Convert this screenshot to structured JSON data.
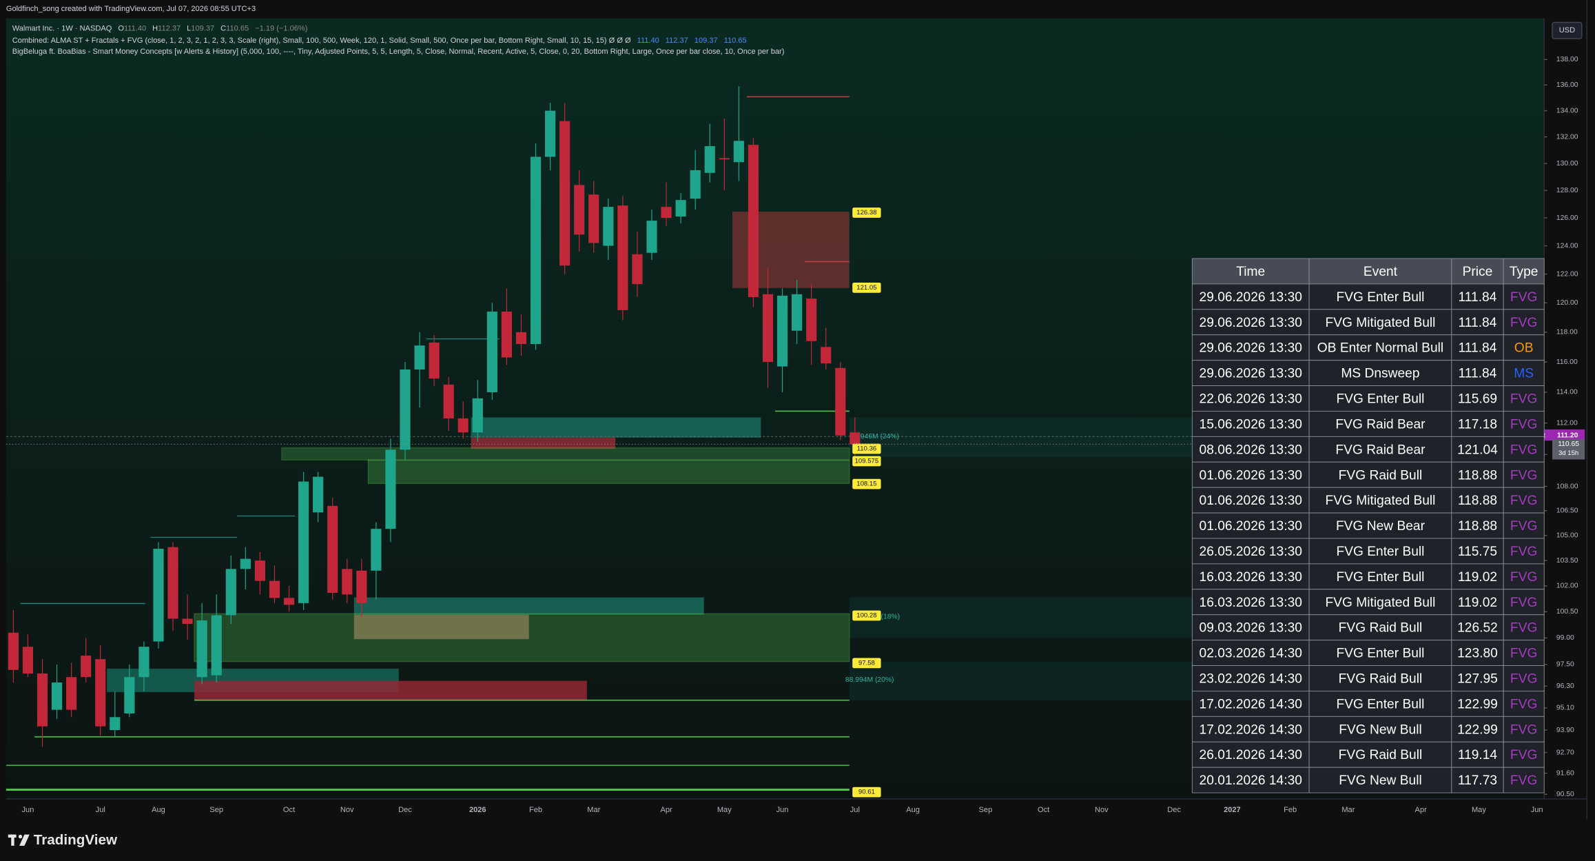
{
  "header": {
    "credit": "Goldfinch_song created with TradingView.com, Jul 07, 2026 08:55 UTC+3",
    "symbol": "Walmart Inc. · 1W · NASDAQ",
    "ohlc": [
      {
        "key": "O",
        "value": "111.40"
      },
      {
        "key": "H",
        "value": "112.37"
      },
      {
        "key": "L",
        "value": "109.37"
      },
      {
        "key": "C",
        "value": "110.65"
      }
    ],
    "change": "−1.19 (−1.06%)",
    "indicator1": {
      "text": "Combined: ALMA ST + Fractals + FVG (close, 1, 2, 3, 2, 1, 2, 3, 3, Scale (right), Small, 100, 500, Week, 120, 1, Solid, Small, 500, Once per bar, Bottom Right, Small, 10, 15, 15)  Ø  Ø  Ø",
      "values": [
        "111.40",
        "112.37",
        "109.37",
        "110.65"
      ]
    },
    "indicator2": "BigBeluga ft. BoaBias - Smart Money Concepts [w Alerts & History] (5,000, 100, ----, Tiny, Adjusted Points, 5, 5, Length, 5, Close, Normal, Recent, Active, 5, Close, 0, 20, Bottom Right, Large, Once per bar close, 10, Once per bar)",
    "currency": "USD"
  },
  "chart_data": {
    "type": "candlestick",
    "log_scale": true,
    "grid": false,
    "up_color": "#1fa58c",
    "down_color": "#c2283a",
    "categories": [
      null,
      "Jun",
      null,
      null,
      null,
      null,
      "Jul",
      null,
      null,
      null,
      "Aug",
      null,
      null,
      null,
      "Sep",
      null,
      null,
      null,
      null,
      "Oct",
      null,
      null,
      null,
      "Nov",
      null,
      null,
      null,
      "Dec",
      null,
      null,
      null,
      null,
      "2026",
      null,
      null,
      null,
      "Feb",
      null,
      null,
      null,
      "Mar",
      null,
      null,
      null,
      null,
      "Apr",
      null,
      null,
      null,
      "May",
      null,
      null,
      null,
      "Jun",
      null,
      null,
      null,
      null,
      "Jul",
      null,
      null,
      null,
      "Aug",
      null,
      null,
      null,
      null,
      "Sep",
      null,
      null,
      null,
      "Oct",
      null,
      null,
      null,
      "Nov",
      null,
      null,
      null,
      null,
      "Dec",
      null,
      null,
      null,
      "2027",
      null,
      null,
      null,
      "Feb",
      null,
      null,
      null,
      "Mar",
      null,
      null,
      null,
      null,
      "Apr",
      null,
      null,
      null,
      "May",
      null,
      null,
      null,
      "Jun"
    ],
    "open": [
      99.3,
      98.5,
      97.0,
      95.0,
      96.8,
      98.0,
      97.8,
      93.9,
      94.8,
      96.8,
      98.8,
      104.3,
      100.1,
      96.8,
      96.9,
      100.3,
      103.0,
      103.5,
      102.3,
      101.3,
      101.0,
      106.4,
      106.8,
      103.0,
      102.9,
      102.9,
      105.4,
      110.3,
      115.5,
      117.3,
      114.5,
      112.3,
      111.4,
      114.0,
      119.4,
      118.0,
      117.2,
      130.5,
      133.2,
      128.4,
      127.7,
      124.0,
      126.9,
      123.4,
      123.5,
      126.8,
      126.1,
      127.4,
      129.3,
      130.4,
      130.1,
      131.4,
      120.6,
      115.7,
      118.1,
      120.3,
      117.0,
      115.6,
      111.4,
      null,
      null,
      null,
      null,
      null,
      null,
      null,
      null,
      null,
      null,
      null,
      null,
      null,
      null,
      null,
      null,
      null,
      null,
      null,
      null,
      null,
      null,
      null,
      null,
      null,
      null,
      null,
      null,
      null,
      null,
      null,
      null,
      null,
      null,
      null,
      null,
      null,
      null,
      null,
      null,
      null,
      null,
      null,
      null,
      null,
      null,
      null
    ],
    "high": [
      100.6,
      99.2,
      97.8,
      97.5,
      97.6,
      99.0,
      98.6,
      96.0,
      97.5,
      98.8,
      104.6,
      104.6,
      101.5,
      101.0,
      101.5,
      103.8,
      104.3,
      104.0,
      103.2,
      102.0,
      108.9,
      108.9,
      107.3,
      103.6,
      103.6,
      105.8,
      111.0,
      116.0,
      118.0,
      117.8,
      115.0,
      113.4,
      114.8,
      120.0,
      121.0,
      119.2,
      131.5,
      134.6,
      134.6,
      129.5,
      128.7,
      127.4,
      127.6,
      125.0,
      126.6,
      128.6,
      127.8,
      131.0,
      133.0,
      133.4,
      135.9,
      131.9,
      122.4,
      121.0,
      121.6,
      121.3,
      118.3,
      116.0,
      112.37,
      null,
      null,
      null,
      null,
      null,
      null,
      null,
      null,
      null,
      null,
      null,
      null,
      null,
      null,
      null,
      null,
      null,
      null,
      null,
      null,
      null,
      null,
      null,
      null,
      null,
      null,
      null,
      null,
      null,
      null,
      null,
      null,
      null,
      null,
      null,
      null,
      null,
      null,
      null,
      null,
      null,
      null,
      null,
      null,
      null,
      null,
      null
    ],
    "low": [
      96.5,
      96.8,
      93.0,
      94.5,
      94.6,
      96.5,
      93.6,
      93.5,
      94.6,
      96.0,
      98.4,
      99.4,
      98.9,
      96.4,
      96.5,
      99.8,
      101.8,
      101.5,
      101.0,
      100.5,
      100.6,
      105.8,
      101.2,
      101.0,
      100.2,
      101.2,
      104.6,
      109.6,
      113.0,
      114.4,
      111.5,
      111.0,
      110.8,
      113.5,
      115.8,
      116.4,
      116.8,
      129.5,
      122.0,
      123.6,
      123.5,
      123.0,
      118.8,
      120.4,
      123.0,
      125.4,
      125.6,
      126.6,
      128.6,
      128.0,
      128.7,
      119.7,
      114.3,
      114.0,
      117.2,
      115.8,
      115.5,
      110.9,
      109.37,
      null,
      null,
      null,
      null,
      null,
      null,
      null,
      null,
      null,
      null,
      null,
      null,
      null,
      null,
      null,
      null,
      null,
      null,
      null,
      null,
      null,
      null,
      null,
      null,
      null,
      null,
      null,
      null,
      null,
      null,
      null,
      null,
      null,
      null,
      null,
      null,
      null,
      null,
      null,
      null,
      null,
      null,
      null,
      null,
      null,
      null,
      null
    ],
    "close": [
      97.2,
      97.0,
      94.1,
      96.5,
      95.0,
      96.8,
      94.1,
      94.6,
      96.8,
      98.5,
      104.2,
      100.1,
      99.8,
      100.0,
      100.3,
      103.0,
      103.6,
      102.3,
      101.3,
      100.9,
      108.3,
      108.6,
      101.6,
      101.5,
      101.0,
      105.4,
      110.3,
      115.5,
      117.1,
      114.9,
      112.3,
      111.4,
      113.6,
      119.4,
      116.3,
      117.2,
      130.5,
      134.0,
      122.6,
      124.8,
      124.2,
      126.8,
      119.5,
      121.3,
      125.8,
      126.0,
      127.3,
      129.5,
      131.3,
      130.3,
      131.7,
      120.4,
      116.0,
      120.5,
      120.6,
      117.4,
      115.9,
      111.2,
      110.65,
      null,
      null,
      null,
      null,
      null,
      null,
      null,
      null,
      null,
      null,
      null,
      null,
      null,
      null,
      null,
      null,
      null,
      null,
      null,
      null,
      null,
      null,
      null,
      null,
      null,
      null,
      null,
      null,
      null,
      null,
      null,
      null,
      null,
      null,
      null,
      null,
      null,
      null,
      null,
      null,
      null,
      null,
      null,
      null,
      null,
      null,
      null
    ],
    "ylim": [
      90.26,
      141.3
    ],
    "yticks": [
      {
        "value": 138,
        "label": "138.00"
      },
      {
        "value": 136,
        "label": "136.00"
      },
      {
        "value": 134,
        "label": "134.00"
      },
      {
        "value": 132,
        "label": "132.00"
      },
      {
        "value": 130,
        "label": "130.00"
      },
      {
        "value": 128,
        "label": "128.00"
      },
      {
        "value": 126,
        "label": "126.00"
      },
      {
        "value": 124,
        "label": "124.00"
      },
      {
        "value": 122,
        "label": "122.00"
      },
      {
        "value": 120,
        "label": "120.00"
      },
      {
        "value": 118,
        "label": "118.00"
      },
      {
        "value": 116,
        "label": "116.00"
      },
      {
        "value": 114,
        "label": "114.00"
      },
      {
        "value": 112,
        "label": "112.00"
      },
      {
        "value": 110,
        "label": "110.00"
      },
      {
        "value": 108,
        "label": "108.00"
      },
      {
        "value": 106.5,
        "label": "106.50"
      },
      {
        "value": 105,
        "label": "105.00"
      },
      {
        "value": 103.5,
        "label": "103.50"
      },
      {
        "value": 102,
        "label": "102.00"
      },
      {
        "value": 100.5,
        "label": "100.50"
      },
      {
        "value": 99,
        "label": "99.00"
      },
      {
        "value": 97.5,
        "label": "97.50"
      },
      {
        "value": 96.3,
        "label": "96.30"
      },
      {
        "value": 95.1,
        "label": "95.10"
      },
      {
        "value": 93.9,
        "label": "93.90"
      },
      {
        "value": 92.7,
        "label": "92.70"
      },
      {
        "value": 91.6,
        "label": "91.60"
      },
      {
        "value": 90.5,
        "label": "90.50"
      }
    ],
    "price_labels": [
      126.38,
      121.05,
      110.36,
      109.575,
      108.15,
      100.28,
      97.58,
      90.61
    ],
    "last_price": {
      "value": 110.65,
      "countdown": "3d 15h"
    },
    "overnight": {
      "name": "Overnight",
      "value": 111.2,
      "label": "111.20"
    },
    "annotations": [
      "8.946M (24%)",
      "(18%)",
      "88.994M (20%)"
    ]
  },
  "table": {
    "columns": [
      "Time",
      "Event",
      "Price",
      "Type"
    ],
    "type_colors": {
      "FVG": "#a43bc0",
      "OB": "#ff9800",
      "MS": "#2962ff"
    },
    "rows": [
      [
        "29.06.2026 13:30",
        "FVG Enter Bull",
        "111.84",
        "FVG"
      ],
      [
        "29.06.2026 13:30",
        "FVG Mitigated Bull",
        "111.84",
        "FVG"
      ],
      [
        "29.06.2026 13:30",
        "OB Enter Normal Bull",
        "111.84",
        "OB"
      ],
      [
        "29.06.2026 13:30",
        "MS Dnsweep",
        "111.84",
        "MS"
      ],
      [
        "22.06.2026 13:30",
        "FVG Enter Bull",
        "115.69",
        "FVG"
      ],
      [
        "15.06.2026 13:30",
        "FVG Raid Bear",
        "117.18",
        "FVG"
      ],
      [
        "08.06.2026 13:30",
        "FVG Raid Bear",
        "121.04",
        "FVG"
      ],
      [
        "01.06.2026 13:30",
        "FVG Raid Bull",
        "118.88",
        "FVG"
      ],
      [
        "01.06.2026 13:30",
        "FVG Mitigated Bull",
        "118.88",
        "FVG"
      ],
      [
        "01.06.2026 13:30",
        "FVG New Bear",
        "118.88",
        "FVG"
      ],
      [
        "26.05.2026 13:30",
        "FVG Enter Bull",
        "115.75",
        "FVG"
      ],
      [
        "16.03.2026 13:30",
        "FVG Enter Bull",
        "119.02",
        "FVG"
      ],
      [
        "16.03.2026 13:30",
        "FVG Mitigated Bull",
        "119.02",
        "FVG"
      ],
      [
        "09.03.2026 13:30",
        "FVG Raid Bull",
        "126.52",
        "FVG"
      ],
      [
        "02.03.2026 14:30",
        "FVG Enter Bull",
        "123.80",
        "FVG"
      ],
      [
        "23.02.2026 14:30",
        "FVG Raid Bull",
        "127.95",
        "FVG"
      ],
      [
        "17.02.2026 14:30",
        "FVG Enter Bull",
        "122.99",
        "FVG"
      ],
      [
        "17.02.2026 14:30",
        "FVG New Bull",
        "122.99",
        "FVG"
      ],
      [
        "26.01.2026 14:30",
        "FVG Raid Bull",
        "119.14",
        "FVG"
      ],
      [
        "20.01.2026 14:30",
        "FVG New Bull",
        "117.73",
        "FVG"
      ]
    ]
  },
  "footer": {
    "brand": "TradingView"
  }
}
